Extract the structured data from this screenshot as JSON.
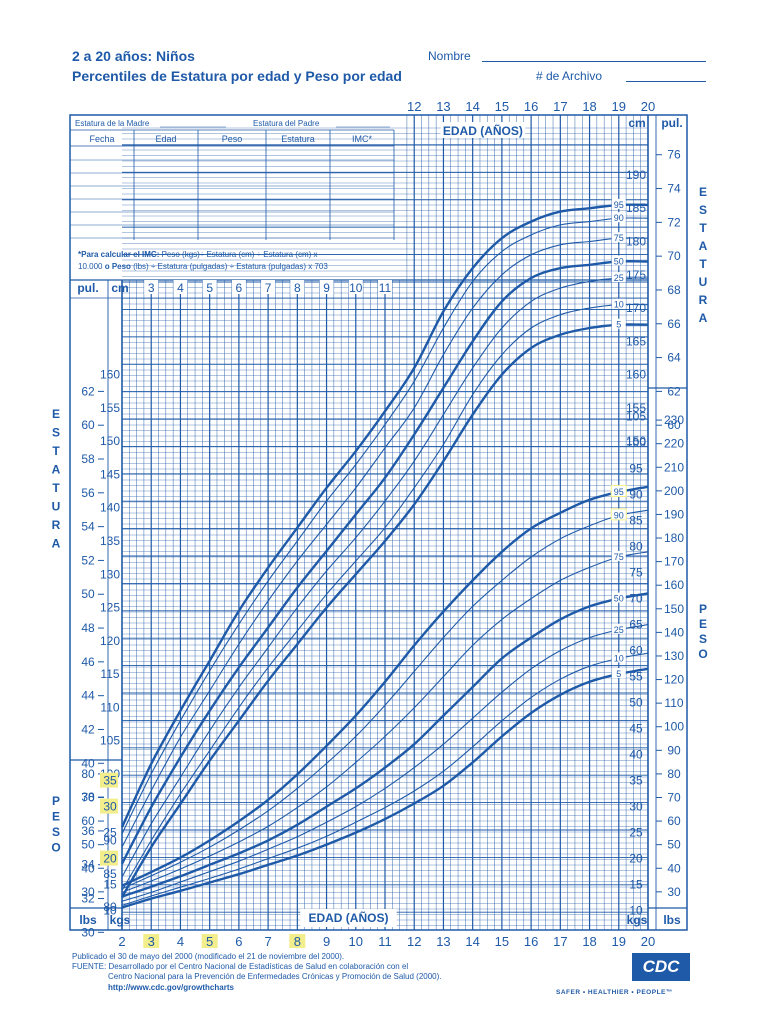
{
  "header": {
    "title": "2 a 20 años: Niños",
    "subtitle": "Percentiles de Estatura por edad y Peso por edad",
    "name_label": "Nombre",
    "file_label": "# de Archivo"
  },
  "record_table": {
    "mother_label": "Estatura de la Madre",
    "father_label": "Estatura del Padre",
    "columns": [
      "Fecha",
      "Edad",
      "Peso",
      "Estatura",
      "IMC*"
    ],
    "imc_bold": "*Para calcular el IMC:",
    "imc_line1": "Peso (kgs)÷ Estatura (cm) ÷ Estatura (cm) x",
    "imc_line2a": "10.000",
    "imc_line2b": "o Peso",
    "imc_line2c": "(lbs) ÷ Estatura (pulgadas) ÷ Estatura (pulgadas) x 703"
  },
  "footer": {
    "line1": "Publicado el 30 de mayo del 2000 (modificado el 21 de noviembre del 2000).",
    "line2": "FUENTE: Desarrollado por el Centro Nacional de Estadísticas de Salud en colaboración con el",
    "line3": "Centro Nacional para la Prevención de Enfermedades Crónicas y Promoción de Salud (2000).",
    "line4": "http://www.cdc.gov/growthcharts",
    "logo": "CDC",
    "slogan": "SAFER • HEALTHIER • PEOPLE™"
  },
  "chart_data": {
    "type": "line",
    "x_title": "EDAD (AÑOS)",
    "xlim": [
      2,
      20
    ],
    "x_ticks": [
      "2",
      "3",
      "4",
      "5",
      "6",
      "7",
      "8",
      "9",
      "10",
      "11",
      "12",
      "13",
      "14",
      "15",
      "16",
      "17",
      "18",
      "19",
      "20"
    ],
    "x_ticks_top": [
      "12",
      "13",
      "14",
      "15",
      "16",
      "17",
      "18",
      "19",
      "20"
    ],
    "x_ticks_inner": [
      "3",
      "4",
      "5",
      "6",
      "7",
      "8",
      "9",
      "10",
      "11"
    ],
    "x_highlight": [
      "3",
      "5",
      "8"
    ],
    "stature": {
      "title_left": "ESTATURA",
      "title_right": "ESTATURA",
      "unit_cm": "cm",
      "unit_in": "pul.",
      "ylim_cm": [
        77,
        193
      ],
      "left_cm_ticks": [
        "80",
        "85",
        "90",
        "95",
        "100",
        "105",
        "110",
        "115",
        "120",
        "125",
        "130",
        "135",
        "140",
        "145",
        "150",
        "155",
        "160"
      ],
      "right_cm_ticks": [
        "150",
        "155",
        "160",
        "165",
        "170",
        "175",
        "180",
        "185",
        "190"
      ],
      "left_in_ticks": [
        "30",
        "32",
        "34",
        "36",
        "38",
        "40",
        "42",
        "44",
        "46",
        "48",
        "50",
        "52",
        "54",
        "56",
        "58",
        "60",
        "62"
      ],
      "right_in_ticks": [
        "60",
        "62",
        "64",
        "66",
        "68",
        "70",
        "72",
        "74",
        "76"
      ],
      "percentiles": [
        "5",
        "10",
        "25",
        "50",
        "75",
        "90",
        "95"
      ],
      "x": [
        2,
        3,
        4,
        5,
        6,
        7,
        8,
        9,
        10,
        11,
        12,
        13,
        14,
        15,
        16,
        17,
        18,
        19,
        20
      ],
      "series": [
        {
          "name": "5",
          "values": [
            81.5,
            89,
            95.5,
            102,
            108,
            114,
            119.5,
            125,
            130,
            135,
            140.5,
            147,
            154,
            160,
            164,
            166,
            167,
            167.5,
            167.5
          ]
        },
        {
          "name": "10",
          "values": [
            82.5,
            90,
            97,
            103.5,
            110,
            116,
            121.5,
            127,
            132,
            137,
            143,
            149.5,
            157,
            163,
            167,
            169,
            170,
            170.5,
            170.5
          ]
        },
        {
          "name": "25",
          "values": [
            84.5,
            92.5,
            99.5,
            106.5,
            113,
            119,
            125,
            130.5,
            135.5,
            141,
            147,
            154,
            161,
            167,
            171,
            173,
            174,
            174.5,
            174.5
          ]
        },
        {
          "name": "50",
          "values": [
            86.5,
            95,
            102.5,
            109.5,
            116,
            122,
            128,
            133.5,
            139,
            144.5,
            151,
            158,
            165,
            171,
            174.5,
            176,
            176.5,
            177,
            177
          ]
        },
        {
          "name": "75",
          "values": [
            89,
            97.5,
            105.5,
            112.5,
            119.5,
            126,
            132,
            137.5,
            143,
            149,
            155,
            163,
            170,
            175,
            178,
            179.5,
            180,
            180.5,
            180.5
          ]
        },
        {
          "name": "90",
          "values": [
            91,
            100,
            108,
            115.5,
            122.5,
            129,
            135,
            141,
            146.5,
            152.5,
            159,
            167,
            174,
            178.5,
            181,
            182.5,
            183,
            183.5,
            183.5
          ]
        },
        {
          "name": "95",
          "values": [
            92,
            101.5,
            109.5,
            117,
            124.5,
            131,
            137,
            143,
            148.5,
            154.5,
            161,
            169.5,
            176,
            180.5,
            183,
            184.5,
            185,
            185.5,
            185.5
          ]
        }
      ]
    },
    "weight": {
      "title_left": "PESO",
      "title_right": "PESO",
      "unit_kg": "kgs",
      "unit_lb": "lbs",
      "ylim_kg": [
        8,
        108
      ],
      "left_kg_ticks": [
        "10",
        "15",
        "20",
        "25",
        "30",
        "35"
      ],
      "left_kg_highlight": [
        "20",
        "30",
        "35"
      ],
      "left_lb_ticks": [
        "30",
        "40",
        "50",
        "60",
        "70",
        "80"
      ],
      "right_kg_ticks": [
        "10",
        "15",
        "20",
        "25",
        "30",
        "35",
        "40",
        "45",
        "50",
        "55",
        "60",
        "65",
        "70",
        "75",
        "80",
        "85",
        "90",
        "95",
        "100",
        "105"
      ],
      "right_lb_ticks": [
        "30",
        "40",
        "50",
        "60",
        "70",
        "80",
        "90",
        "100",
        "110",
        "120",
        "130",
        "140",
        "150",
        "160",
        "170",
        "180",
        "190",
        "200",
        "210",
        "220",
        "230"
      ],
      "percentile_highlight": [
        "95",
        "90"
      ],
      "x": [
        2,
        3,
        4,
        5,
        6,
        7,
        8,
        9,
        10,
        11,
        12,
        13,
        14,
        15,
        16,
        17,
        18,
        19,
        20
      ],
      "series": [
        {
          "name": "5",
          "values": [
            10.6,
            12.3,
            13.8,
            15.4,
            17,
            18.8,
            20.6,
            22.7,
            25,
            27.6,
            30.6,
            34,
            38.5,
            43.5,
            48,
            51.5,
            54,
            55.5,
            56.5
          ]
        },
        {
          "name": "10",
          "values": [
            11,
            12.8,
            14.5,
            16.2,
            18,
            20,
            22,
            24.3,
            27,
            29.8,
            33,
            36.8,
            41.5,
            46.5,
            51,
            54.5,
            57,
            58.5,
            59.5
          ]
        },
        {
          "name": "25",
          "values": [
            11.8,
            13.5,
            15.5,
            17.5,
            19.5,
            21.8,
            24.2,
            27,
            30,
            33.5,
            37.5,
            42,
            47,
            52,
            56.5,
            60,
            62.5,
            64,
            65
          ]
        },
        {
          "name": "50",
          "values": [
            12.7,
            14.6,
            16.6,
            18.8,
            21,
            23.5,
            26.5,
            30,
            33.5,
            37.5,
            42,
            47.5,
            53,
            58.5,
            62.5,
            66,
            68.5,
            70,
            71
          ]
        },
        {
          "name": "75",
          "values": [
            13.5,
            15.7,
            18,
            20.5,
            23.2,
            26.2,
            29.8,
            33.8,
            38.5,
            43.5,
            49,
            55,
            61,
            66,
            70,
            73.5,
            76,
            78,
            79
          ]
        },
        {
          "name": "90",
          "values": [
            14.2,
            16.7,
            19.3,
            22.2,
            25.5,
            29.2,
            33.5,
            38.3,
            43.5,
            49.5,
            56,
            62.5,
            68.5,
            73.5,
            78,
            81.5,
            84,
            86,
            87
          ]
        },
        {
          "name": "95",
          "values": [
            14.8,
            17.4,
            20.2,
            23.5,
            27.2,
            31.3,
            36.2,
            41.7,
            47.5,
            54,
            61,
            67.5,
            73.5,
            79,
            83.5,
            86.5,
            89,
            90.5,
            91.5
          ]
        }
      ]
    }
  }
}
